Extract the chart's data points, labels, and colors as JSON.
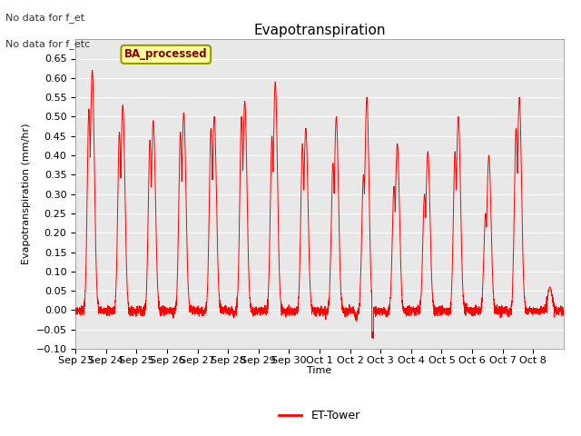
{
  "title": "Evapotranspiration",
  "ylabel": "Evapotranspiration (mm/hr)",
  "xlabel": "Time",
  "ylim": [
    -0.1,
    0.7
  ],
  "yticks": [
    -0.1,
    -0.05,
    0.0,
    0.05,
    0.1,
    0.15,
    0.2,
    0.25,
    0.3,
    0.35,
    0.4,
    0.45,
    0.5,
    0.55,
    0.6,
    0.65
  ],
  "line_color": "#ff0000",
  "background_color": "#e8e8e8",
  "figure_bg": "#ffffff",
  "top_left_text1": "No data for f_et",
  "top_left_text2": "No data for f_etc",
  "legend_label": "BA_processed",
  "legend_box_color": "#ffff99",
  "legend_box_edge": "#999900",
  "bottom_legend_label": "ET-Tower",
  "title_fontsize": 11,
  "label_fontsize": 8,
  "tick_fontsize": 8,
  "x_tick_labels": [
    "Sep 23",
    "Sep 24",
    "Sep 25",
    "Sep 26",
    "Sep 27",
    "Sep 28",
    "Sep 29",
    "Sep 30",
    "Oct 1",
    "Oct 2",
    "Oct 3",
    "Oct 4",
    "Oct 5",
    "Oct 6",
    "Oct 7",
    "Oct 8"
  ],
  "daily_peaks": [
    0.62,
    0.53,
    0.49,
    0.51,
    0.5,
    0.54,
    0.59,
    0.47,
    0.5,
    0.55,
    0.43,
    0.41,
    0.5,
    0.4,
    0.55,
    0.06
  ],
  "daily_secondary": [
    0.52,
    0.46,
    0.44,
    0.46,
    0.47,
    0.5,
    0.45,
    0.43,
    0.38,
    0.35,
    0.32,
    0.3,
    0.41,
    0.25,
    0.47,
    0.0
  ],
  "daily_dip_min": [
    0.0,
    -0.025,
    -0.02,
    -0.015,
    -0.02,
    -0.03,
    -0.02,
    -0.005,
    -0.02,
    -0.065,
    -0.04,
    -0.005,
    -0.01,
    -0.005,
    -0.02,
    0.0
  ]
}
